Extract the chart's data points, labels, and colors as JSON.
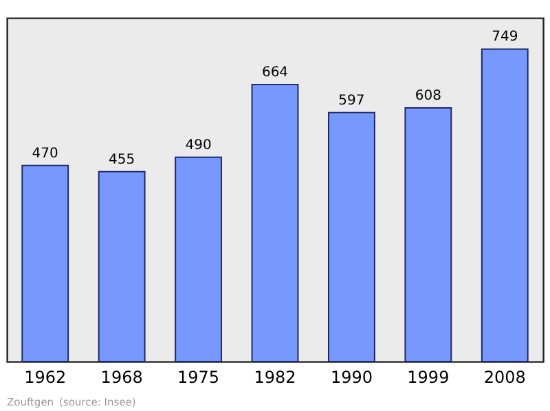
{
  "chart_data": {
    "type": "bar",
    "categories": [
      "1962",
      "1968",
      "1975",
      "1982",
      "1990",
      "1999",
      "2008"
    ],
    "values": [
      470,
      455,
      490,
      664,
      597,
      608,
      749
    ],
    "color": "#7799ff",
    "data_labels": true,
    "annotations": [
      "Zouftgen",
      "(source: Insee)"
    ]
  }
}
